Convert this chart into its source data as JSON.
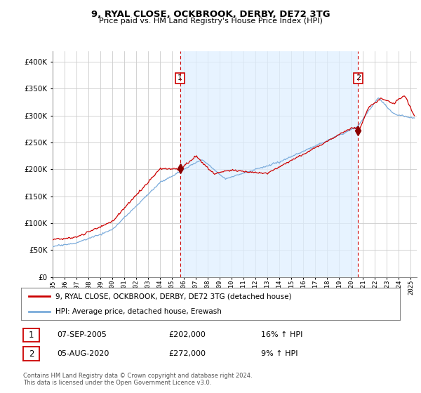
{
  "title": "9, RYAL CLOSE, OCKBROOK, DERBY, DE72 3TG",
  "subtitle": "Price paid vs. HM Land Registry's House Price Index (HPI)",
  "ylim": [
    0,
    420000
  ],
  "yticks": [
    0,
    50000,
    100000,
    150000,
    200000,
    250000,
    300000,
    350000,
    400000
  ],
  "xlim_start": 1995.0,
  "xlim_end": 2025.5,
  "hpi_color": "#7aabdb",
  "price_color": "#cc0000",
  "vline_color": "#cc0000",
  "shade_color": "#ddeeff",
  "marker1_year": 2005.67,
  "marker2_year": 2020.58,
  "marker1_price": 202000,
  "marker2_price": 272000,
  "legend_label1": "9, RYAL CLOSE, OCKBROOK, DERBY, DE72 3TG (detached house)",
  "legend_label2": "HPI: Average price, detached house, Erewash",
  "annotation1_label": "1",
  "annotation1_date": "07-SEP-2005",
  "annotation1_price": "£202,000",
  "annotation1_hpi": "16% ↑ HPI",
  "annotation2_label": "2",
  "annotation2_date": "05-AUG-2020",
  "annotation2_price": "£272,000",
  "annotation2_hpi": "9% ↑ HPI",
  "footer": "Contains HM Land Registry data © Crown copyright and database right 2024.\nThis data is licensed under the Open Government Licence v3.0.",
  "background_color": "#ffffff",
  "grid_color": "#cccccc"
}
